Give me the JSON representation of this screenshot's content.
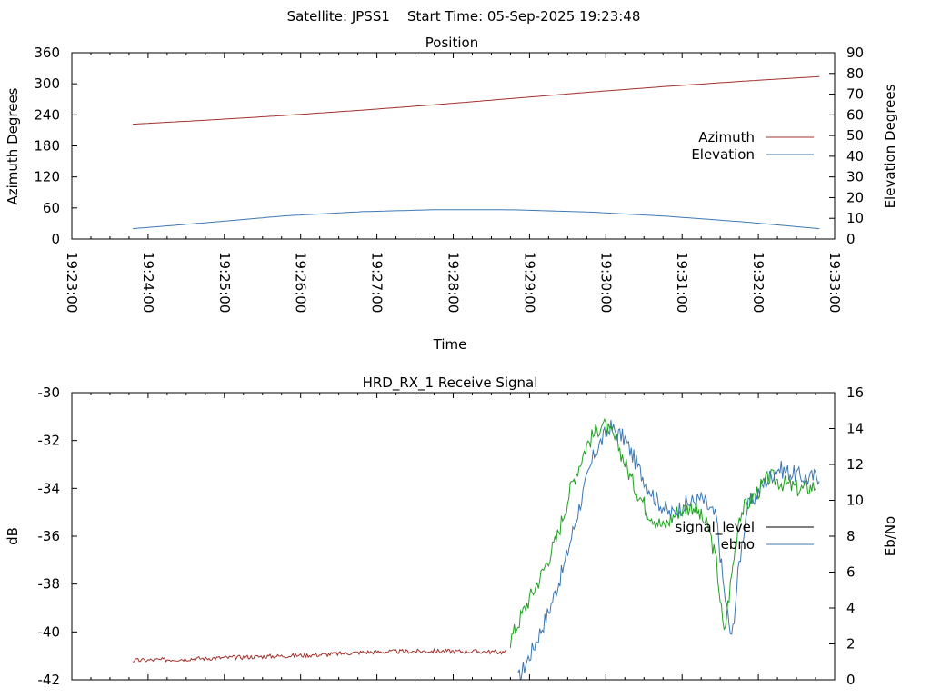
{
  "header": {
    "title": "Satellite: JPSS1    Start Time: 05-Sep-2025 19:23:48"
  },
  "chart_data": [
    {
      "type": "line",
      "title": "Position",
      "xlabel": "Time",
      "ylabel": "Azimuth Degrees",
      "y2label": "Elevation Degrees",
      "xlim": [
        "19:23:00",
        "19:33:00"
      ],
      "xticks": [
        "19:23:00",
        "19:24:00",
        "19:25:00",
        "19:26:00",
        "19:27:00",
        "19:28:00",
        "19:29:00",
        "19:30:00",
        "19:31:00",
        "19:32:00",
        "19:33:00"
      ],
      "ylim": [
        0,
        360
      ],
      "yticks": [
        0,
        60,
        120,
        180,
        240,
        300,
        360
      ],
      "y2lim": [
        0,
        90
      ],
      "y2ticks": [
        0,
        10,
        20,
        30,
        40,
        50,
        60,
        70,
        80,
        90
      ],
      "legend_position": "right",
      "series": [
        {
          "name": "Azimuth",
          "axis": "y",
          "color": "#a0302c",
          "x": [
            "19:23:48",
            "19:24:48",
            "19:25:48",
            "19:26:48",
            "19:27:48",
            "19:28:48",
            "19:29:48",
            "19:30:48",
            "19:31:48",
            "19:32:48"
          ],
          "values": [
            222,
            230,
            239,
            249,
            260,
            272,
            284,
            295,
            305,
            314
          ]
        },
        {
          "name": "Elevation",
          "axis": "y2",
          "color": "#3c78b4",
          "x": [
            "19:23:48",
            "19:24:48",
            "19:25:48",
            "19:26:48",
            "19:27:48",
            "19:28:48",
            "19:29:48",
            "19:30:48",
            "19:31:48",
            "19:32:48"
          ],
          "values": [
            5,
            8,
            11.2,
            13.2,
            14.2,
            14.1,
            13,
            11,
            8.3,
            5
          ]
        }
      ]
    },
    {
      "type": "line",
      "title": "HRD_RX_1 Receive Signal",
      "ylabel": "dB",
      "y2label": "Eb/No",
      "ylim": [
        -42,
        -30
      ],
      "yticks": [
        -42,
        -40,
        -38,
        -36,
        -34,
        -32,
        -30
      ],
      "y2lim": [
        0,
        16
      ],
      "y2ticks": [
        0,
        2,
        4,
        6,
        8,
        10,
        12,
        14,
        16
      ],
      "xlim": [
        "19:23:00",
        "19:33:00"
      ],
      "legend_position": "right",
      "series": [
        {
          "name": "signal_level",
          "axis": "y",
          "color": "#000000",
          "legend_only": true,
          "x": [],
          "values": []
        },
        {
          "name": "ebno",
          "axis": "y2",
          "color": "#3c78b4",
          "x": [
            "19:28:51",
            "19:29:03",
            "19:29:15",
            "19:29:27",
            "19:29:39",
            "19:29:51",
            "19:30:03",
            "19:30:15",
            "19:30:27",
            "19:30:39",
            "19:30:51",
            "19:31:03",
            "19:31:15",
            "19:31:27",
            "19:31:33",
            "19:31:39",
            "19:31:45",
            "19:31:51",
            "19:32:03",
            "19:32:15",
            "19:32:27",
            "19:32:39",
            "19:32:48"
          ],
          "values": [
            0,
            1.8,
            3.8,
            6.3,
            9.6,
            12.6,
            14.1,
            13.4,
            11.6,
            10.1,
            9.2,
            9.8,
            10.1,
            9,
            5,
            2.2,
            6.5,
            9.5,
            10.8,
            11.8,
            11.5,
            11.2,
            11.4
          ]
        },
        {
          "name": "ebno (green trace)",
          "axis": "y2",
          "color": "#20a020",
          "x": [
            "19:28:45",
            "19:28:57",
            "19:29:09",
            "19:29:21",
            "19:29:33",
            "19:29:45",
            "19:29:57",
            "19:30:09",
            "19:30:21",
            "19:30:33",
            "19:30:45",
            "19:30:57",
            "19:31:09",
            "19:31:21",
            "19:31:27",
            "19:31:33",
            "19:31:39",
            "19:31:45",
            "19:31:57",
            "19:32:09",
            "19:32:21",
            "19:32:33",
            "19:32:45"
          ],
          "values": [
            2.2,
            4.1,
            5.8,
            7.8,
            10.8,
            13.1,
            14.3,
            13.2,
            11,
            9.4,
            8.5,
            9.4,
            9.7,
            8.4,
            6.5,
            2.5,
            5.8,
            9.2,
            10.3,
            11.3,
            10.9,
            10.6,
            10.8
          ]
        },
        {
          "name": "signal (red trace)",
          "axis": "y",
          "color": "#a0302c",
          "x": [
            "19:23:48",
            "19:24:18",
            "19:24:48",
            "19:25:18",
            "19:25:48",
            "19:26:18",
            "19:26:48",
            "19:27:18",
            "19:27:48",
            "19:28:18",
            "19:28:42"
          ],
          "values": [
            -41.2,
            -41.15,
            -41.1,
            -41.05,
            -41,
            -40.95,
            -40.85,
            -40.82,
            -40.8,
            -40.82,
            -40.85
          ]
        }
      ]
    }
  ]
}
